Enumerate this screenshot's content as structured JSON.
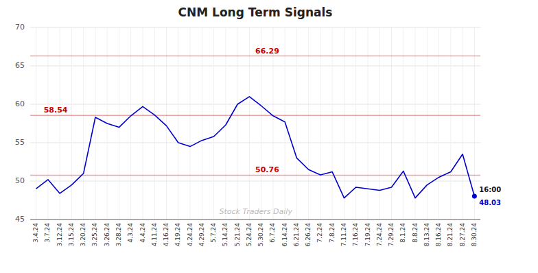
{
  "chart_data": {
    "type": "line",
    "title": "CNM Long Term Signals",
    "categories": [
      "3.4.24",
      "3.7.24",
      "3.12.24",
      "3.15.24",
      "3.20.24",
      "3.25.24",
      "3.26.24",
      "3.28.24",
      "4.3.24",
      "4.4.24",
      "4.11.24",
      "4.16.24",
      "4.19.24",
      "4.24.24",
      "4.29.24",
      "5.7.24",
      "5.14.24",
      "5.21.24",
      "5.24.24",
      "5.30.24",
      "6.7.24",
      "6.14.24",
      "6.21.24",
      "6.26.24",
      "7.2.24",
      "7.8.24",
      "7.11.24",
      "7.16.24",
      "7.19.24",
      "7.24.24",
      "7.29.24",
      "8.1.24",
      "8.8.24",
      "8.13.24",
      "8.16.24",
      "8.21.24",
      "8.27.24",
      "8.30.24"
    ],
    "values": [
      49.0,
      50.2,
      48.4,
      49.5,
      51.0,
      58.3,
      57.5,
      57.0,
      58.5,
      59.7,
      58.6,
      57.2,
      55.0,
      54.5,
      55.3,
      55.8,
      57.3,
      60.0,
      61.0,
      59.8,
      58.5,
      57.7,
      53.0,
      51.5,
      50.8,
      51.2,
      47.8,
      49.2,
      49.0,
      48.8,
      49.2,
      51.3,
      47.8,
      49.5,
      50.5,
      51.2,
      53.5,
      48.03
    ],
    "color": "#0000cc",
    "ylim": [
      45,
      70
    ],
    "yticks": [
      45,
      50,
      55,
      60,
      65,
      70
    ],
    "grid": true,
    "reference_lines": [
      {
        "value": 66.29,
        "label": "66.29",
        "color": "#cc0000"
      },
      {
        "value": 58.54,
        "label": "58.54",
        "color": "#cc0000"
      },
      {
        "value": 50.76,
        "label": "50.76",
        "color": "#cc0000"
      }
    ],
    "end_label": "16:00",
    "watermark": "Stock Traders Daily"
  }
}
